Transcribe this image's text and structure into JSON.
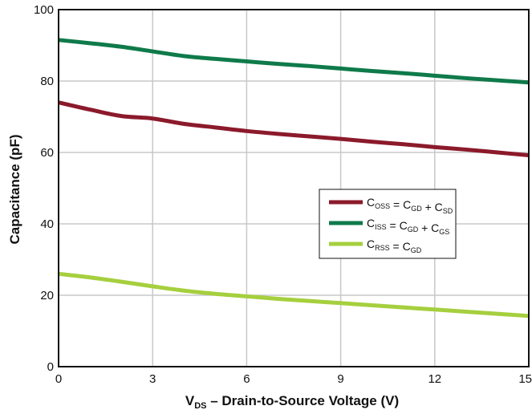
{
  "chart_data": {
    "type": "line",
    "xlabel": "V_DS – Drain-to-Source Voltage (V)",
    "xlabel_parts": {
      "main": "V",
      "sub": "DS",
      "rest": " – Drain-to-Source Voltage (V)"
    },
    "ylabel": "Capacitance (pF)",
    "xlim": [
      0,
      15
    ],
    "ylim": [
      0,
      100
    ],
    "xticks": [
      0,
      3,
      6,
      9,
      12,
      15
    ],
    "yticks": [
      0,
      20,
      40,
      60,
      80,
      100
    ],
    "grid": true,
    "legend_position": "center-right",
    "series": [
      {
        "name": "C_OSS = C_GD + C_SD",
        "label_parts": [
          [
            "C",
            "OSS"
          ],
          [
            " = C",
            "GD"
          ],
          [
            " + C",
            "SD"
          ]
        ],
        "color": "#8b1a2b",
        "x": [
          0,
          1,
          2,
          3,
          4,
          5,
          6,
          7,
          8,
          9,
          10,
          11,
          12,
          13,
          14,
          15
        ],
        "y": [
          74.0,
          72.0,
          70.2,
          69.5,
          68.0,
          67.0,
          66.0,
          65.2,
          64.5,
          63.8,
          63.0,
          62.3,
          61.5,
          60.8,
          60.0,
          59.2
        ]
      },
      {
        "name": "C_ISS = C_GD + C_GS",
        "label_parts": [
          [
            "C",
            "ISS"
          ],
          [
            " = C",
            "GD"
          ],
          [
            " + C",
            "GS"
          ]
        ],
        "color": "#0f7a4a",
        "x": [
          0,
          1,
          2,
          3,
          4,
          5,
          6,
          7,
          8,
          9,
          10,
          11,
          12,
          13,
          14,
          15
        ],
        "y": [
          91.5,
          90.6,
          89.6,
          88.3,
          87.0,
          86.2,
          85.5,
          84.8,
          84.2,
          83.5,
          82.8,
          82.2,
          81.5,
          80.8,
          80.2,
          79.6
        ]
      },
      {
        "name": "C_RSS = C_GD",
        "label_parts": [
          [
            "C",
            "RSS"
          ],
          [
            " = C",
            "GD"
          ]
        ],
        "color": "#a6cf3e",
        "x": [
          0,
          1,
          2,
          3,
          4,
          5,
          6,
          7,
          8,
          9,
          10,
          11,
          12,
          13,
          14,
          15
        ],
        "y": [
          26.0,
          25.0,
          23.8,
          22.5,
          21.3,
          20.4,
          19.7,
          19.0,
          18.4,
          17.8,
          17.2,
          16.6,
          16.0,
          15.4,
          14.8,
          14.2
        ]
      }
    ]
  }
}
